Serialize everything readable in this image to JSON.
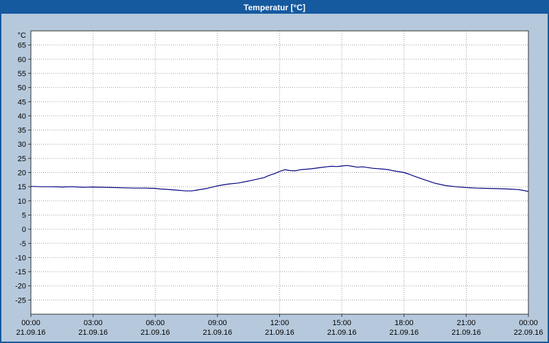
{
  "window": {
    "title": "Temperatur [°C]",
    "titlebar_color": "#15599f",
    "background_color": "#b6c9dc"
  },
  "chart_data": {
    "type": "line",
    "title": "Temperatur [°C]",
    "y_unit_label": "°C",
    "ylim": [
      -30,
      70
    ],
    "y_ticks": [
      65,
      60,
      55,
      50,
      45,
      40,
      35,
      30,
      25,
      20,
      15,
      10,
      5,
      0,
      -5,
      -10,
      -15,
      -20,
      -25
    ],
    "xlim": [
      0,
      24
    ],
    "x_ticks": [
      {
        "hour": 0,
        "time": "00:00",
        "date": "21.09.16"
      },
      {
        "hour": 3,
        "time": "03:00",
        "date": "21.09.16"
      },
      {
        "hour": 6,
        "time": "06:00",
        "date": "21.09.16"
      },
      {
        "hour": 9,
        "time": "09:00",
        "date": "21.09.16"
      },
      {
        "hour": 12,
        "time": "12:00",
        "date": "21.09.16"
      },
      {
        "hour": 15,
        "time": "15:00",
        "date": "21.09.16"
      },
      {
        "hour": 18,
        "time": "18:00",
        "date": "21.09.16"
      },
      {
        "hour": 21,
        "time": "21:00",
        "date": "21.09.16"
      },
      {
        "hour": 24,
        "time": "00:00",
        "date": "22.09.16"
      }
    ],
    "grid": true,
    "grid_color": "#9a9a9a",
    "plot_background": "#ffffff",
    "plot_border_color": "#333333",
    "line_color": "#000080",
    "series": [
      {
        "name": "Temperatur",
        "points": [
          [
            0,
            15.1
          ],
          [
            0.5,
            15.0
          ],
          [
            1,
            15.0
          ],
          [
            1.5,
            14.9
          ],
          [
            2,
            15.0
          ],
          [
            2.5,
            14.8
          ],
          [
            3,
            14.9
          ],
          [
            3.5,
            14.8
          ],
          [
            4,
            14.7
          ],
          [
            4.5,
            14.6
          ],
          [
            5,
            14.5
          ],
          [
            5.5,
            14.5
          ],
          [
            6,
            14.4
          ],
          [
            6.25,
            14.2
          ],
          [
            6.5,
            14.1
          ],
          [
            7,
            13.8
          ],
          [
            7.5,
            13.5
          ],
          [
            7.75,
            13.5
          ],
          [
            8,
            13.8
          ],
          [
            8.5,
            14.4
          ],
          [
            9,
            15.3
          ],
          [
            9.5,
            15.9
          ],
          [
            10,
            16.3
          ],
          [
            10.5,
            17.0
          ],
          [
            11,
            17.8
          ],
          [
            11.25,
            18.2
          ],
          [
            11.5,
            19.0
          ],
          [
            11.75,
            19.6
          ],
          [
            12,
            20.4
          ],
          [
            12.25,
            21.0
          ],
          [
            12.5,
            20.7
          ],
          [
            12.75,
            20.6
          ],
          [
            13,
            21.0
          ],
          [
            13.5,
            21.3
          ],
          [
            14,
            21.8
          ],
          [
            14.25,
            22.0
          ],
          [
            14.5,
            22.2
          ],
          [
            14.75,
            22.1
          ],
          [
            15,
            22.3
          ],
          [
            15.25,
            22.5
          ],
          [
            15.5,
            22.2
          ],
          [
            15.75,
            21.9
          ],
          [
            16,
            22.0
          ],
          [
            16.5,
            21.5
          ],
          [
            17,
            21.2
          ],
          [
            17.25,
            21.0
          ],
          [
            17.5,
            20.6
          ],
          [
            18,
            20.0
          ],
          [
            18.25,
            19.4
          ],
          [
            18.5,
            18.7
          ],
          [
            19,
            17.4
          ],
          [
            19.5,
            16.2
          ],
          [
            20,
            15.4
          ],
          [
            20.5,
            15.0
          ],
          [
            21,
            14.7
          ],
          [
            21.5,
            14.5
          ],
          [
            22,
            14.4
          ],
          [
            22.5,
            14.3
          ],
          [
            23,
            14.2
          ],
          [
            23.25,
            14.1
          ],
          [
            23.5,
            14.0
          ],
          [
            23.75,
            13.7
          ],
          [
            24,
            13.3
          ]
        ]
      }
    ]
  }
}
